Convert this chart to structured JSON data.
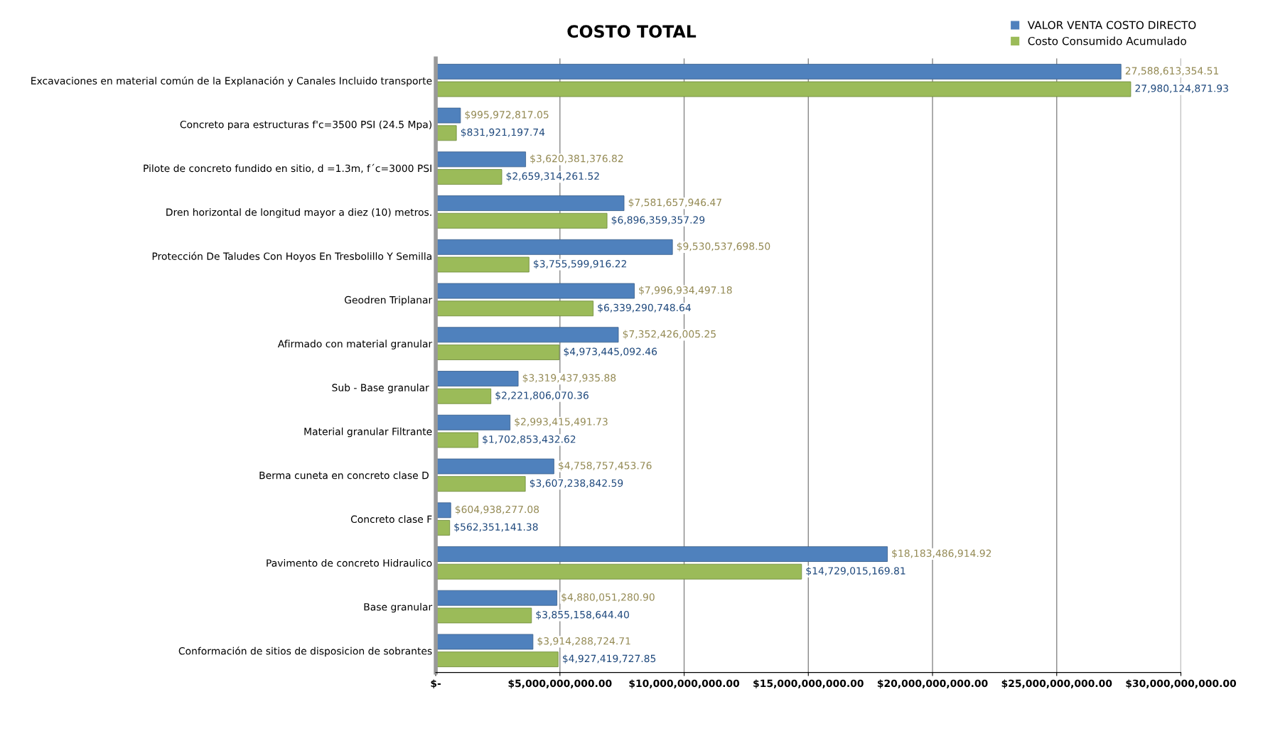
{
  "chart_data": {
    "type": "bar",
    "orientation": "horizontal",
    "title": "COSTO TOTAL",
    "categories": [
      "Excavaciones en material común de la Explanación y Canales Incluido transporte",
      "Concreto para estructuras f'c=3500 PSI (24.5 Mpa)",
      "Pilote de concreto fundido en sitio, d =1.3m, f´c=3000 PSI",
      "Dren horizontal de longitud mayor a diez (10) metros.",
      "Protección De Taludes Con Hoyos En Tresbolillo Y Semilla",
      "Geodren Triplanar",
      "Afirmado con material granular",
      "Sub - Base granular ",
      "Material granular Filtrante",
      "Berma cuneta en concreto clase D ",
      "Concreto clase F",
      "Pavimento de concreto Hidraulico",
      "Base granular",
      "Conformación de sitios de disposicion de sobrantes"
    ],
    "series": [
      {
        "name": "VALOR VENTA COSTO DIRECTO",
        "color": "#4f81bd",
        "values": [
          27588613354.51,
          995972817.05,
          3620381376.82,
          7581657946.47,
          9530537698.5,
          7996934497.18,
          7352426005.25,
          3319437935.88,
          2993415491.73,
          4758757453.76,
          604938277.08,
          18183486914.92,
          4880051280.9,
          3914288724.71
        ],
        "value_labels": [
          "27,588,613,354.51",
          "$995,972,817.05",
          "$3,620,381,376.82",
          "$7,581,657,946.47",
          "$9,530,537,698.50",
          "$7,996,934,497.18",
          "$7,352,426,005.25",
          "$3,319,437,935.88",
          "$2,993,415,491.73",
          "$4,758,757,453.76",
          "$604,938,277.08",
          "$18,183,486,914.92",
          "$4,880,051,280.90",
          "$3,914,288,724.71"
        ]
      },
      {
        "name": "Costo Consumido Acumulado",
        "color": "#9bbb59",
        "values": [
          27980124871.93,
          831921197.74,
          2659314261.52,
          6896359357.29,
          3755599916.22,
          6339290748.64,
          4973445092.46,
          2221806070.36,
          1702853432.62,
          3607238842.59,
          562351141.38,
          14729015169.81,
          3855158644.4,
          4927419727.85
        ],
        "value_labels": [
          "27,980,124,871.93",
          "$831,921,197.74",
          "$2,659,314,261.52",
          "$6,896,359,357.29",
          "$3,755,599,916.22",
          "$6,339,290,748.64",
          "$4,973,445,092.46",
          "$2,221,806,070.36",
          "$1,702,853,432.62",
          "$3,607,238,842.59",
          "$562,351,141.38",
          "$14,729,015,169.81",
          "$3,855,158,644.40",
          "$4,927,419,727.85"
        ]
      }
    ],
    "xlim": [
      0,
      30000000000
    ],
    "xticks": [
      {
        "value": 0,
        "label": "$-"
      },
      {
        "value": 5000000000,
        "label": "$5,000,000,000.00"
      },
      {
        "value": 10000000000,
        "label": "$10,000,000,000.00"
      },
      {
        "value": 15000000000,
        "label": "$15,000,000,000.00"
      },
      {
        "value": 20000000000,
        "label": "$20,000,000,000.00"
      },
      {
        "value": 25000000000,
        "label": "$25,000,000,000.00"
      },
      {
        "value": 30000000000,
        "label": "$30,000,000,000.00"
      }
    ],
    "grid": "x",
    "legend": "top right"
  }
}
